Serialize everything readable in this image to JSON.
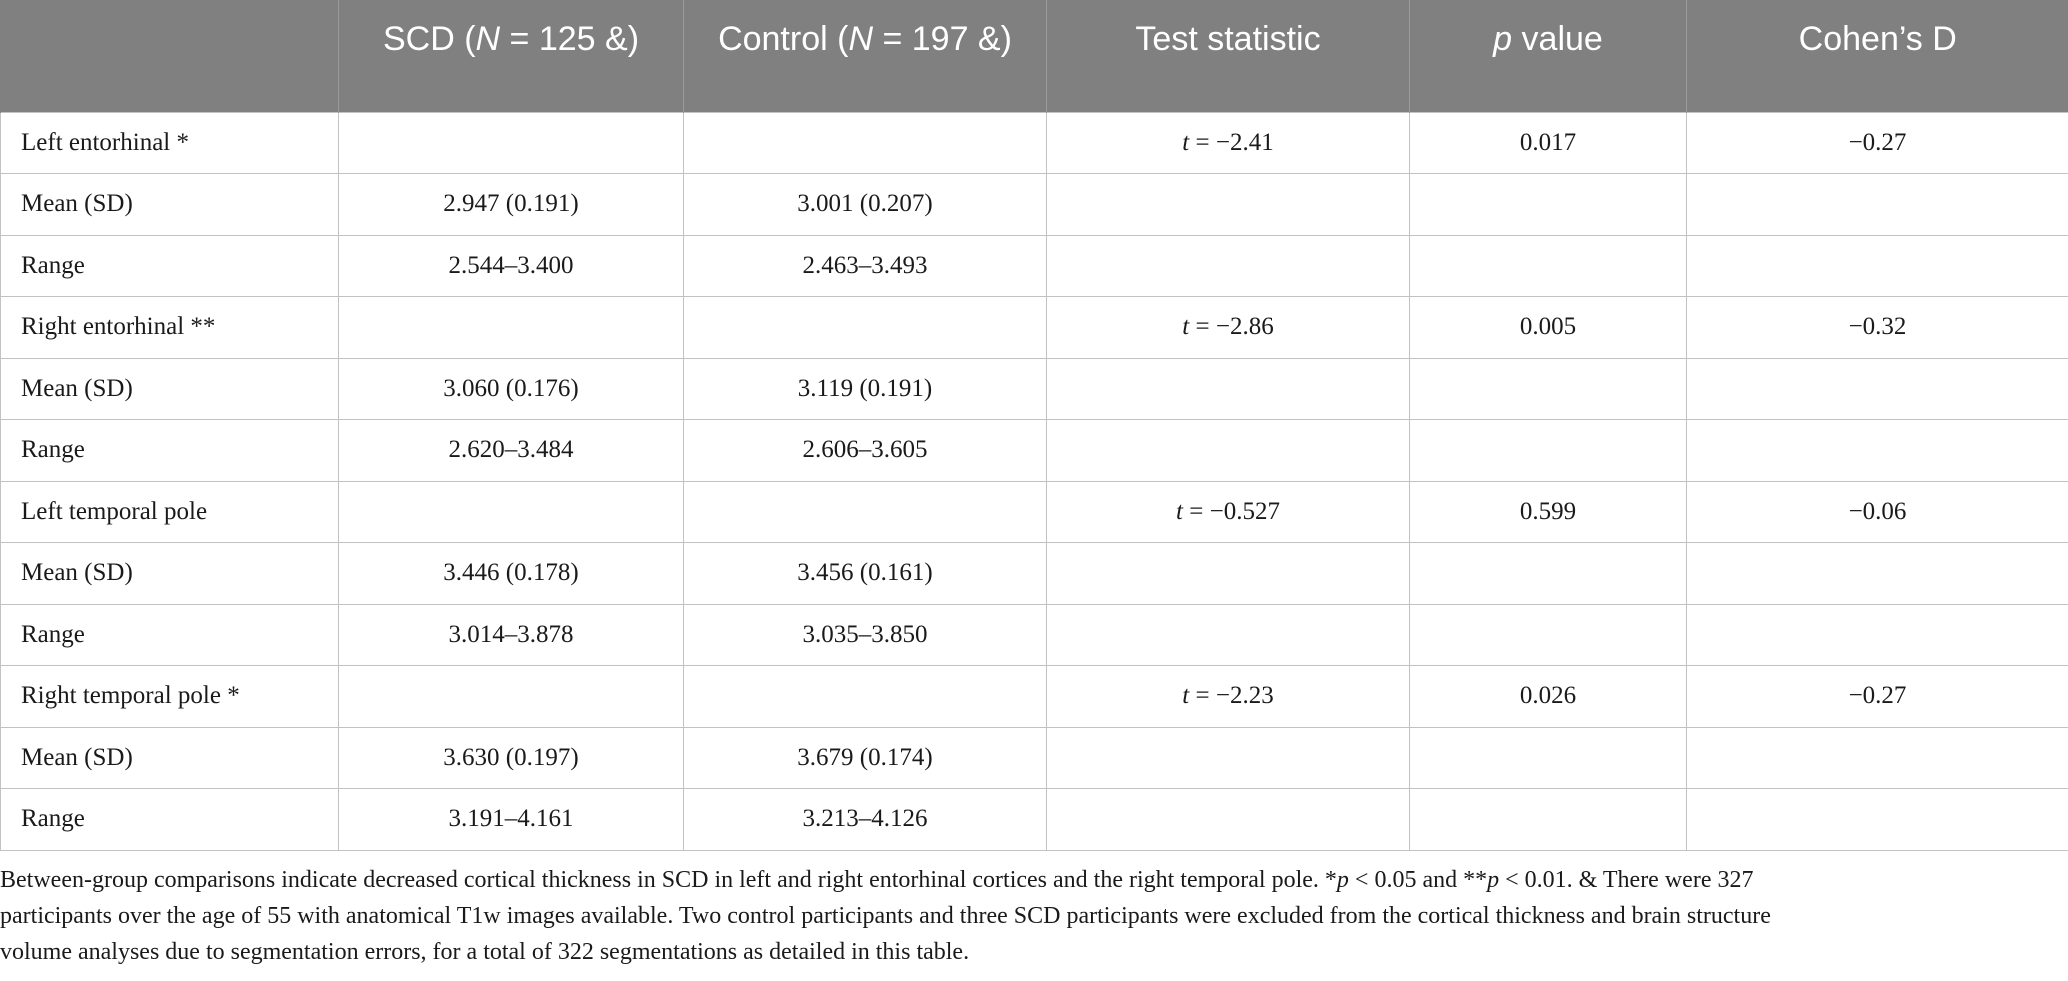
{
  "table": {
    "headers": [
      {
        "text": ""
      },
      {
        "pre": "SCD (",
        "italic": "N",
        "post": " = 125 &)"
      },
      {
        "pre": "Control (",
        "italic": "N",
        "post": " = 197 &)"
      },
      {
        "pre": "",
        "italic": "",
        "post": "Test statistic"
      },
      {
        "pre": "",
        "italic": "p",
        "post": " value"
      },
      {
        "pre": "",
        "italic": "",
        "post": "Cohen’s D"
      }
    ],
    "rows": [
      {
        "label": "Left entorhinal *",
        "scd": "",
        "control": "",
        "stat_var": "t",
        "stat_val": " = −2.41",
        "p": "0.017",
        "d": "−0.27"
      },
      {
        "label": "Mean (SD)",
        "scd": "2.947 (0.191)",
        "control": "3.001 (0.207)",
        "stat_var": "",
        "stat_val": "",
        "p": "",
        "d": ""
      },
      {
        "label": "Range",
        "scd": "2.544–3.400",
        "control": "2.463–3.493",
        "stat_var": "",
        "stat_val": "",
        "p": "",
        "d": ""
      },
      {
        "label": "Right entorhinal **",
        "scd": "",
        "control": "",
        "stat_var": "t",
        "stat_val": " = −2.86",
        "p": "0.005",
        "d": "−0.32"
      },
      {
        "label": "Mean (SD)",
        "scd": "3.060 (0.176)",
        "control": "3.119 (0.191)",
        "stat_var": "",
        "stat_val": "",
        "p": "",
        "d": ""
      },
      {
        "label": "Range",
        "scd": "2.620–3.484",
        "control": "2.606–3.605",
        "stat_var": "",
        "stat_val": "",
        "p": "",
        "d": ""
      },
      {
        "label": "Left temporal pole",
        "scd": "",
        "control": "",
        "stat_var": "t",
        "stat_val": " = −0.527",
        "p": "0.599",
        "d": "−0.06"
      },
      {
        "label": "Mean (SD)",
        "scd": "3.446 (0.178)",
        "control": "3.456 (0.161)",
        "stat_var": "",
        "stat_val": "",
        "p": "",
        "d": ""
      },
      {
        "label": "Range",
        "scd": "3.014–3.878",
        "control": "3.035–3.850",
        "stat_var": "",
        "stat_val": "",
        "p": "",
        "d": ""
      },
      {
        "label": "Right temporal pole *",
        "scd": "",
        "control": "",
        "stat_var": "t",
        "stat_val": " = −2.23",
        "p": "0.026",
        "d": "−0.27"
      },
      {
        "label": "Mean (SD)",
        "scd": "3.630 (0.197)",
        "control": "3.679 (0.174)",
        "stat_var": "",
        "stat_val": "",
        "p": "",
        "d": ""
      },
      {
        "label": "Range",
        "scd": "3.191–4.161",
        "control": "3.213–4.126",
        "stat_var": "",
        "stat_val": "",
        "p": "",
        "d": ""
      }
    ]
  },
  "footnote": {
    "line1_a": "Between-group comparisons indicate decreased cortical thickness in SCD in left and right entorhinal cortices and the right temporal pole. *",
    "line1_p1": "p",
    "line1_b": " < 0.05 and **",
    "line1_p2": "p",
    "line1_c": " < 0.01. & There were 327",
    "line2": "participants over the age of 55 with anatomical T1w images available. Two control participants and three SCD participants were excluded from the cortical thickness and brain structure",
    "line3": "volume analyses due to segmentation errors, for a total of 322 segmentations as detailed in this table."
  }
}
